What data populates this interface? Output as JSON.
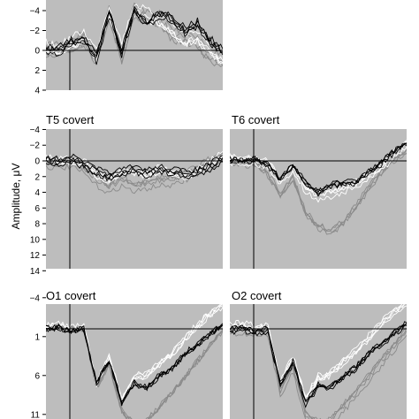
{
  "chart_data": [
    {
      "type": "line",
      "title": "",
      "ylim": [
        -4,
        4
      ],
      "y_inverted": true,
      "yticks": [
        "−4",
        "−2",
        "0",
        "2",
        "4"
      ],
      "partial": true,
      "series": [
        {
          "name": "",
          "color": "#000000",
          "values": [
            0.2,
            0.1,
            -0.6,
            -1.0,
            1.0,
            -3.6,
            0.3,
            -3.9,
            -2.5,
            -3.6,
            -3.0,
            -1.8,
            -2.5,
            -0.8,
            0.3
          ]
        },
        {
          "name": "",
          "color": "#ffffff",
          "values": [
            -0.3,
            0.2,
            -0.8,
            -1.4,
            0.5,
            -4.0,
            -0.2,
            -4.2,
            -3.5,
            -3.0,
            -2.2,
            -1.0,
            -1.5,
            0.0,
            0.8
          ]
        },
        {
          "name": "",
          "color": "#8a8a8a",
          "values": [
            0.0,
            -0.2,
            -0.4,
            -1.2,
            0.8,
            -3.8,
            0.6,
            -4.0,
            -3.2,
            -3.2,
            -1.5,
            -1.4,
            -0.8,
            0.6,
            1.0
          ]
        }
      ]
    },
    {
      "type": "line",
      "title": "T5 covert",
      "ylim": [
        -4,
        14
      ],
      "y_inverted": true,
      "yticks": [
        "−4",
        "−2",
        "0",
        "2",
        "4",
        "6",
        "8",
        "10",
        "12",
        "14"
      ],
      "series": [
        {
          "name": "",
          "color": "#000000",
          "values": [
            0.0,
            0.2,
            -0.2,
            0.6,
            1.5,
            2.0,
            1.6,
            1.2,
            1.6,
            1.2,
            1.4,
            1.8,
            1.6,
            0.8,
            -0.2
          ]
        },
        {
          "name": "",
          "color": "#ffffff",
          "values": [
            -0.2,
            0.0,
            0.0,
            0.2,
            1.8,
            2.3,
            1.4,
            1.4,
            1.9,
            1.0,
            1.6,
            2.0,
            1.4,
            0.4,
            -0.8
          ]
        },
        {
          "name": "",
          "color": "#8a8a8a",
          "values": [
            0.2,
            0.4,
            0.2,
            1.0,
            2.6,
            3.6,
            2.6,
            3.4,
            3.0,
            2.6,
            2.6,
            2.0,
            1.2,
            0.2,
            -0.6
          ]
        }
      ]
    },
    {
      "type": "line",
      "title": "T6 covert",
      "ylim": [
        -4,
        14
      ],
      "y_inverted": true,
      "series": [
        {
          "name": "",
          "color": "#000000",
          "values": [
            0.0,
            0.2,
            -0.1,
            0.6,
            2.6,
            0.6,
            3.0,
            4.2,
            3.2,
            3.0,
            2.8,
            1.6,
            0.4,
            -1.0,
            -2.0
          ]
        },
        {
          "name": "",
          "color": "#ffffff",
          "values": [
            -0.2,
            0.0,
            0.0,
            0.4,
            2.6,
            0.8,
            3.6,
            4.6,
            4.2,
            3.6,
            3.0,
            2.0,
            0.8,
            -0.8,
            -2.2
          ]
        },
        {
          "name": "",
          "color": "#8a8a8a",
          "values": [
            0.2,
            0.6,
            0.4,
            1.8,
            4.6,
            2.4,
            6.8,
            8.6,
            9.2,
            8.0,
            6.0,
            3.6,
            1.6,
            0.0,
            -1.0
          ]
        }
      ]
    },
    {
      "type": "line",
      "title": "O1 covert",
      "ylim": [
        -4,
        14
      ],
      "y_inverted": true,
      "yticks": [
        "−4",
        "1",
        "6",
        "11"
      ],
      "series": [
        {
          "name": "",
          "color": "#000000",
          "values": [
            0.0,
            -0.2,
            0.2,
            0.0,
            7.0,
            4.0,
            9.5,
            7.0,
            7.5,
            6.0,
            5.0,
            3.2,
            2.0,
            0.6,
            -0.6
          ]
        },
        {
          "name": "",
          "color": "#ffffff",
          "values": [
            -0.2,
            -0.4,
            0.0,
            -0.2,
            7.0,
            3.6,
            9.2,
            6.2,
            6.0,
            4.4,
            3.2,
            1.2,
            -0.4,
            -2.0,
            -3.0
          ]
        },
        {
          "name": "",
          "color": "#8a8a8a",
          "values": [
            0.2,
            0.2,
            0.4,
            0.4,
            8.0,
            5.0,
            11.0,
            12.6,
            12.2,
            10.4,
            8.6,
            6.6,
            4.6,
            2.6,
            0.6
          ]
        }
      ]
    },
    {
      "type": "line",
      "title": "O2 covert",
      "ylim": [
        -4,
        14
      ],
      "y_inverted": true,
      "series": [
        {
          "name": "",
          "color": "#000000",
          "values": [
            0.0,
            -0.2,
            0.2,
            0.0,
            7.0,
            4.2,
            9.4,
            7.2,
            7.4,
            6.0,
            4.8,
            3.0,
            1.8,
            0.4,
            -0.8
          ]
        },
        {
          "name": "",
          "color": "#ffffff",
          "values": [
            -0.2,
            -0.4,
            0.0,
            -0.2,
            7.2,
            3.8,
            9.0,
            6.4,
            5.8,
            4.2,
            3.0,
            1.2,
            -0.6,
            -2.2,
            -3.2
          ]
        },
        {
          "name": "",
          "color": "#8a8a8a",
          "values": [
            0.2,
            0.2,
            0.4,
            0.4,
            8.2,
            5.2,
            11.2,
            12.4,
            12.0,
            10.2,
            8.4,
            6.4,
            4.4,
            2.4,
            0.4
          ]
        }
      ]
    }
  ],
  "ylabel": "Amplitude, μV",
  "colors": {
    "panel_bg": "#bdbdbd",
    "trace_black": "#000000",
    "trace_white": "#ffffff",
    "trace_gray": "#8a8a8a"
  }
}
